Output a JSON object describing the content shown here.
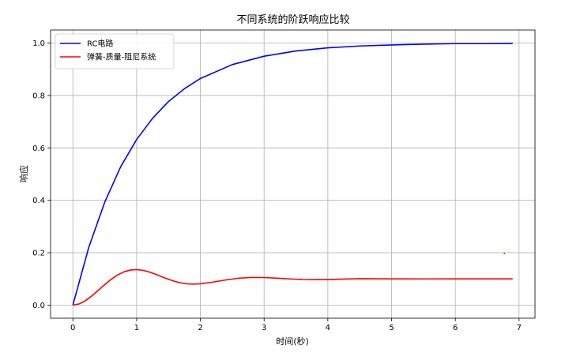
{
  "chart_data": {
    "type": "line",
    "title": "不同系统的阶跃响应比较",
    "xlabel": "时间(秒)",
    "ylabel": "响应",
    "xlim": [
      -0.35,
      7.25
    ],
    "ylim": [
      -0.05,
      1.05
    ],
    "xticks": [
      "0",
      "1",
      "2",
      "3",
      "4",
      "5",
      "6",
      "7"
    ],
    "yticks": [
      "0.0",
      "0.2",
      "0.4",
      "0.6",
      "0.8",
      "1.0"
    ],
    "grid": true,
    "legend_position": "top-left",
    "series": [
      {
        "name": "RC电路",
        "color": "#0000ff",
        "x": [
          0,
          0.25,
          0.5,
          0.75,
          1.0,
          1.25,
          1.5,
          1.75,
          2.0,
          2.5,
          3.0,
          3.5,
          4.0,
          4.5,
          5.0,
          5.5,
          6.0,
          6.5,
          6.9
        ],
        "y": [
          0,
          0.221,
          0.393,
          0.528,
          0.632,
          0.713,
          0.777,
          0.826,
          0.865,
          0.918,
          0.95,
          0.97,
          0.982,
          0.989,
          0.993,
          0.996,
          0.998,
          0.998,
          0.999
        ]
      },
      {
        "name": "弹簧-质量-阻尼系统",
        "color": "#ff0000",
        "x": [
          0,
          0.1,
          0.2,
          0.3,
          0.4,
          0.5,
          0.6,
          0.7,
          0.8,
          0.9,
          1.0,
          1.1,
          1.2,
          1.3,
          1.4,
          1.5,
          1.6,
          1.7,
          1.8,
          1.9,
          2.0,
          2.2,
          2.4,
          2.6,
          2.8,
          3.0,
          3.2,
          3.4,
          3.6,
          3.8,
          4.0,
          4.2,
          4.5,
          5.0,
          5.5,
          6.0,
          6.5,
          6.9
        ],
        "y": [
          0,
          0.0046,
          0.0172,
          0.0355,
          0.0567,
          0.0784,
          0.0983,
          0.1148,
          0.1268,
          0.1337,
          0.1355,
          0.1327,
          0.1263,
          0.1176,
          0.1079,
          0.0985,
          0.0905,
          0.0845,
          0.081,
          0.08,
          0.0813,
          0.0879,
          0.0962,
          0.1026,
          0.1056,
          0.1052,
          0.1028,
          0.0999,
          0.0977,
          0.097,
          0.0976,
          0.099,
          0.1008,
          0.1002,
          0.0999,
          0.1,
          0.1,
          0.1
        ]
      }
    ],
    "annotations": [
      {
        "x": 6.77,
        "y": 0.198,
        "color": "#ff0000",
        "shape": "dot"
      }
    ]
  }
}
